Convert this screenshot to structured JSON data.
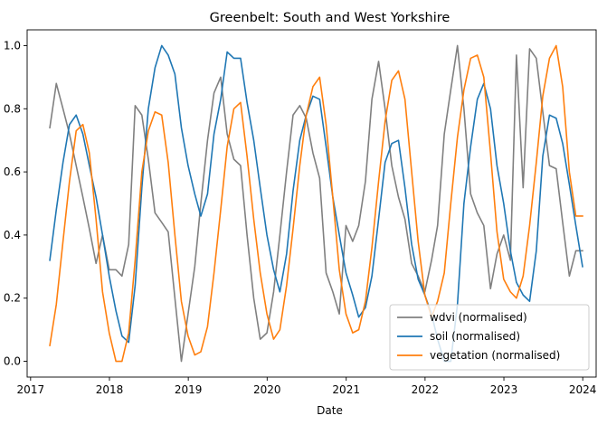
{
  "chart_data": {
    "type": "line",
    "title": "Greenbelt: South and West Yorkshire",
    "xlabel": "Date",
    "ylabel": "",
    "xlim": [
      "2016-12-16",
      "2024-03-03"
    ],
    "ylim": [
      -0.05,
      1.05
    ],
    "x_ticks": [
      "2017",
      "2018",
      "2019",
      "2020",
      "2021",
      "2022",
      "2023",
      "2024"
    ],
    "y_ticks": [
      "0.0",
      "0.2",
      "0.4",
      "0.6",
      "0.8",
      "1.0"
    ],
    "grid": false,
    "legend_position": "lower-right",
    "x": [
      "2017-03-31",
      "2017-04-30",
      "2017-05-31",
      "2017-06-30",
      "2017-07-31",
      "2017-08-31",
      "2017-09-30",
      "2017-10-31",
      "2017-11-30",
      "2017-12-31",
      "2018-01-31",
      "2018-02-28",
      "2018-03-31",
      "2018-04-30",
      "2018-05-31",
      "2018-06-30",
      "2018-07-31",
      "2018-08-31",
      "2018-09-30",
      "2018-10-31",
      "2018-11-30",
      "2018-12-31",
      "2019-01-31",
      "2019-02-28",
      "2019-03-31",
      "2019-04-30",
      "2019-05-31",
      "2019-06-30",
      "2019-07-31",
      "2019-08-31",
      "2019-09-30",
      "2019-10-31",
      "2019-11-30",
      "2019-12-31",
      "2020-01-31",
      "2020-02-29",
      "2020-03-31",
      "2020-04-30",
      "2020-05-31",
      "2020-06-30",
      "2020-07-31",
      "2020-08-31",
      "2020-09-30",
      "2020-10-31",
      "2020-11-30",
      "2020-12-31",
      "2021-01-31",
      "2021-02-28",
      "2021-03-31",
      "2021-04-30",
      "2021-05-31",
      "2021-06-30",
      "2021-07-31",
      "2021-08-31",
      "2021-09-30",
      "2021-10-31",
      "2021-11-30",
      "2021-12-31",
      "2022-01-31",
      "2022-02-28",
      "2022-03-31",
      "2022-04-30",
      "2022-05-31",
      "2022-06-30",
      "2022-07-31",
      "2022-08-31",
      "2022-09-30",
      "2022-10-31",
      "2022-11-30",
      "2022-12-31",
      "2023-01-31",
      "2023-02-28",
      "2023-03-31",
      "2023-04-30",
      "2023-05-31",
      "2023-06-30",
      "2023-07-31",
      "2023-08-31",
      "2023-09-30",
      "2023-10-31",
      "2023-11-30",
      "2023-12-31"
    ],
    "series": [
      {
        "name": "wdvi (normalised)",
        "color": "#808080",
        "values": [
          0.74,
          0.88,
          0.8,
          0.72,
          0.62,
          0.52,
          0.42,
          0.31,
          0.4,
          0.29,
          0.29,
          0.27,
          0.37,
          0.81,
          0.78,
          0.64,
          0.47,
          0.44,
          0.41,
          0.2,
          0.0,
          0.15,
          0.3,
          0.5,
          0.7,
          0.85,
          0.9,
          0.72,
          0.64,
          0.62,
          0.4,
          0.2,
          0.07,
          0.09,
          0.22,
          0.4,
          0.6,
          0.78,
          0.81,
          0.77,
          0.66,
          0.58,
          0.28,
          0.22,
          0.15,
          0.43,
          0.38,
          0.43,
          0.57,
          0.83,
          0.95,
          0.8,
          0.62,
          0.52,
          0.45,
          0.31,
          0.27,
          0.22,
          0.32,
          0.43,
          0.72,
          0.86,
          1.0,
          0.8,
          0.53,
          0.47,
          0.43,
          0.23,
          0.34,
          0.4,
          0.32,
          0.97,
          0.55,
          0.99,
          0.96,
          0.79,
          0.62,
          0.61,
          0.44,
          0.27,
          0.35,
          0.35
        ]
      },
      {
        "name": "soil (normalised)",
        "color": "#1f77b4",
        "values": [
          0.32,
          0.48,
          0.63,
          0.75,
          0.78,
          0.72,
          0.62,
          0.52,
          0.4,
          0.27,
          0.16,
          0.08,
          0.06,
          0.24,
          0.55,
          0.8,
          0.93,
          1.0,
          0.97,
          0.91,
          0.74,
          0.62,
          0.53,
          0.46,
          0.53,
          0.72,
          0.83,
          0.98,
          0.96,
          0.96,
          0.82,
          0.7,
          0.55,
          0.4,
          0.29,
          0.22,
          0.34,
          0.54,
          0.7,
          0.78,
          0.84,
          0.83,
          0.68,
          0.52,
          0.4,
          0.28,
          0.21,
          0.14,
          0.17,
          0.27,
          0.45,
          0.63,
          0.69,
          0.7,
          0.55,
          0.37,
          0.26,
          0.21,
          0.15,
          0.07,
          0.0,
          0.0,
          0.18,
          0.5,
          0.68,
          0.83,
          0.88,
          0.8,
          0.62,
          0.5,
          0.35,
          0.25,
          0.21,
          0.19,
          0.35,
          0.65,
          0.78,
          0.77,
          0.69,
          0.56,
          0.43,
          0.3
        ]
      },
      {
        "name": "vegetation (normalised)",
        "color": "#ff7f0e",
        "values": [
          0.05,
          0.18,
          0.38,
          0.57,
          0.73,
          0.75,
          0.66,
          0.45,
          0.22,
          0.09,
          0.0,
          0.0,
          0.09,
          0.32,
          0.6,
          0.73,
          0.79,
          0.78,
          0.63,
          0.4,
          0.19,
          0.08,
          0.02,
          0.03,
          0.11,
          0.28,
          0.48,
          0.68,
          0.8,
          0.82,
          0.65,
          0.45,
          0.28,
          0.15,
          0.07,
          0.1,
          0.24,
          0.42,
          0.62,
          0.78,
          0.87,
          0.9,
          0.75,
          0.52,
          0.29,
          0.15,
          0.09,
          0.1,
          0.19,
          0.36,
          0.57,
          0.76,
          0.89,
          0.92,
          0.83,
          0.6,
          0.38,
          0.21,
          0.14,
          0.19,
          0.28,
          0.5,
          0.71,
          0.86,
          0.96,
          0.97,
          0.9,
          0.66,
          0.41,
          0.26,
          0.22,
          0.2,
          0.27,
          0.43,
          0.63,
          0.84,
          0.96,
          1.0,
          0.87,
          0.6,
          0.46,
          0.46
        ]
      }
    ]
  }
}
